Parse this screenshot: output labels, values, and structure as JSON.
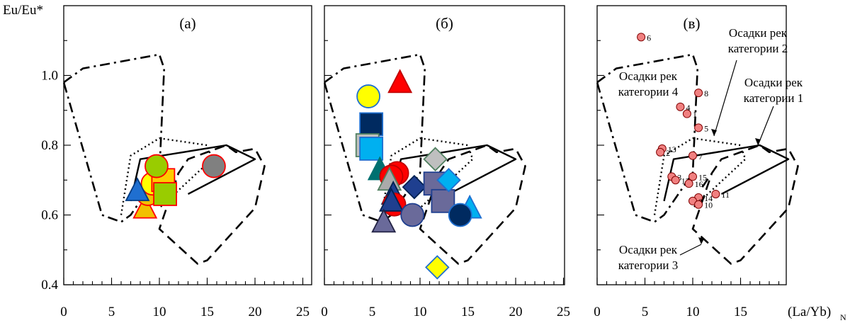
{
  "chart_data": [
    {
      "panel": "(а)",
      "type": "scatter",
      "ylabel": "Eu/Eu*",
      "xlim": [
        0,
        25
      ],
      "ylim": [
        0.4,
        1.2
      ],
      "xticks": [
        "0",
        "5",
        "10",
        "15",
        "20",
        "25"
      ],
      "yticks": [
        "0.4",
        "0.6",
        "0.8",
        "1.0"
      ],
      "fields": {
        "cat1": [
          [
            7,
            0.64
          ],
          [
            8,
            0.76
          ],
          [
            17,
            0.8
          ],
          [
            20,
            0.76
          ],
          [
            13,
            0.66
          ]
        ],
        "cat2": [
          [
            6,
            0.6
          ],
          [
            7,
            0.77
          ],
          [
            10,
            0.82
          ],
          [
            15,
            0.8
          ],
          [
            15.5,
            0.76
          ],
          [
            10,
            0.62
          ]
        ],
        "cat3": [
          [
            11,
            0.68
          ],
          [
            13,
            0.76
          ],
          [
            17,
            0.8
          ],
          [
            18,
            0.78
          ],
          [
            20,
            0.79
          ],
          [
            21,
            0.74
          ],
          [
            20,
            0.62
          ],
          [
            15,
            0.47
          ],
          [
            14,
            0.46
          ],
          [
            10,
            0.56
          ],
          [
            12,
            0.72
          ]
        ],
        "cat4": [
          [
            0,
            0.98
          ],
          [
            2,
            1.02
          ],
          [
            10,
            1.06
          ],
          [
            10.5,
            1.02
          ],
          [
            10,
            0.72
          ],
          [
            7,
            0.6
          ],
          [
            6,
            0.58
          ],
          [
            4,
            0.6
          ],
          [
            0,
            0.98
          ]
        ]
      },
      "points": [
        {
          "x": 8.5,
          "y": 0.62,
          "shape": "triangle",
          "fill": "#f2c000",
          "stroke": "#ff0000"
        },
        {
          "x": 8.8,
          "y": 0.66,
          "shape": "circle",
          "fill": "#f2c000",
          "stroke": "#ff0000"
        },
        {
          "x": 9.3,
          "y": 0.69,
          "shape": "circle",
          "fill": "#ffff00",
          "stroke": "#ff0000"
        },
        {
          "x": 10.4,
          "y": 0.7,
          "shape": "square",
          "fill": "#ffcc00",
          "stroke": "#ff0000"
        },
        {
          "x": 7.7,
          "y": 0.67,
          "shape": "triangle",
          "fill": "#1f6fd0",
          "stroke": "#003a80"
        },
        {
          "x": 9.7,
          "y": 0.74,
          "shape": "circle",
          "fill": "#99cc00",
          "stroke": "#ff0000"
        },
        {
          "x": 10.6,
          "y": 0.66,
          "shape": "square",
          "fill": "#99cc00",
          "stroke": "#ff0000"
        },
        {
          "x": 15.7,
          "y": 0.74,
          "shape": "circle",
          "fill": "#808080",
          "stroke": "#ff0000"
        }
      ]
    },
    {
      "panel": "(б)",
      "type": "scatter",
      "xlim": [
        0,
        25
      ],
      "ylim": [
        0.4,
        1.2
      ],
      "xticks": [
        "0",
        "5",
        "10",
        "15",
        "20",
        "25"
      ],
      "points": [
        {
          "x": 7.9,
          "y": 0.98,
          "shape": "triangle",
          "fill": "#ff0000",
          "stroke": "#c00000"
        },
        {
          "x": 4.6,
          "y": 0.94,
          "shape": "circle",
          "fill": "#ffff00",
          "stroke": "#1f6fd0"
        },
        {
          "x": 4.9,
          "y": 0.86,
          "shape": "square",
          "fill": "#002a60",
          "stroke": "#1f6fd0"
        },
        {
          "x": 4.5,
          "y": 0.8,
          "shape": "square",
          "fill": "#bfbfbf",
          "stroke": "#508060"
        },
        {
          "x": 4.9,
          "y": 0.79,
          "shape": "square",
          "fill": "#00b0f0",
          "stroke": "#1f6fd0"
        },
        {
          "x": 5.8,
          "y": 0.73,
          "shape": "triangle",
          "fill": "#007070",
          "stroke": "#007070"
        },
        {
          "x": 7.6,
          "y": 0.72,
          "shape": "circle",
          "fill": "#ff0000",
          "stroke": "#c00000"
        },
        {
          "x": 7.0,
          "y": 0.71,
          "shape": "circle",
          "fill": "#ff0000",
          "stroke": "#c00000"
        },
        {
          "x": 6.8,
          "y": 0.7,
          "shape": "triangle",
          "fill": "#aaaaaa",
          "stroke": "#508060"
        },
        {
          "x": 7.2,
          "y": 0.66,
          "shape": "triangle",
          "fill": "#1f3f8f",
          "stroke": "#002050"
        },
        {
          "x": 7.3,
          "y": 0.63,
          "shape": "circle",
          "fill": "#ff0000",
          "stroke": "#c00000"
        },
        {
          "x": 7.0,
          "y": 0.64,
          "shape": "triangle",
          "fill": "#1f3f8f",
          "stroke": "#002050"
        },
        {
          "x": 6.2,
          "y": 0.58,
          "shape": "triangle",
          "fill": "#6a6a9a",
          "stroke": "#222244"
        },
        {
          "x": 9.2,
          "y": 0.6,
          "shape": "circle",
          "fill": "#6a6a9a",
          "stroke": "#1f3f8f"
        },
        {
          "x": 9.4,
          "y": 0.68,
          "shape": "diamond",
          "fill": "#1f3f8f",
          "stroke": "#002050"
        },
        {
          "x": 11.6,
          "y": 0.76,
          "shape": "diamond",
          "fill": "#bfbfbf",
          "stroke": "#508060"
        },
        {
          "x": 11.6,
          "y": 0.69,
          "shape": "square",
          "fill": "#6a6a9a",
          "stroke": "#1f3f8f"
        },
        {
          "x": 12.4,
          "y": 0.64,
          "shape": "square",
          "fill": "#6a6a9a",
          "stroke": "#1f3f8f"
        },
        {
          "x": 13.0,
          "y": 0.7,
          "shape": "diamond",
          "fill": "#00b0f0",
          "stroke": "#1f6fd0"
        },
        {
          "x": 15.2,
          "y": 0.62,
          "shape": "triangle",
          "fill": "#00b0f0",
          "stroke": "#1f6fd0"
        },
        {
          "x": 14.2,
          "y": 0.6,
          "shape": "circle",
          "fill": "#002a60",
          "stroke": "#1f6fd0"
        },
        {
          "x": 11.8,
          "y": 0.45,
          "shape": "diamond",
          "fill": "#ffff00",
          "stroke": "#1f6fd0"
        }
      ]
    },
    {
      "panel": "(в)",
      "type": "scatter",
      "xlabel": "(La/Yb)",
      "xlabel_sub": "N",
      "xlim": [
        0,
        25
      ],
      "ylim": [
        0.4,
        1.2
      ],
      "xticks": [
        "0",
        "5",
        "10",
        "15"
      ],
      "annotations": [
        {
          "text": "Осадки рек",
          "line2": "категории 2"
        },
        {
          "text": "Осадки рек",
          "line2": "категории 4"
        },
        {
          "text": "Осадки рек",
          "line2": "категории 1"
        },
        {
          "text": "Осадки рек",
          "line2": "категории 3"
        }
      ],
      "points": [
        {
          "label": "6",
          "x": 4.6,
          "y": 1.11
        },
        {
          "label": "8",
          "x": 10.6,
          "y": 0.95
        },
        {
          "label": "1",
          "x": 9.4,
          "y": 0.89
        },
        {
          "label": "4",
          "x": 8.7,
          "y": 0.91
        },
        {
          "label": "5",
          "x": 10.6,
          "y": 0.85
        },
        {
          "label": "13",
          "x": 6.8,
          "y": 0.79
        },
        {
          "label": "2",
          "x": 6.6,
          "y": 0.78
        },
        {
          "label": "7",
          "x": 10.0,
          "y": 0.77
        },
        {
          "label": "15",
          "x": 10.0,
          "y": 0.71
        },
        {
          "label": "3",
          "x": 7.8,
          "y": 0.71
        },
        {
          "label": "12",
          "x": 8.2,
          "y": 0.7
        },
        {
          "label": "16",
          "x": 9.6,
          "y": 0.69
        },
        {
          "label": "14",
          "x": 10.6,
          "y": 0.65
        },
        {
          "label": "11",
          "x": 12.4,
          "y": 0.66
        },
        {
          "label": "9",
          "x": 10.0,
          "y": 0.64
        },
        {
          "label": "10",
          "x": 10.6,
          "y": 0.63
        }
      ]
    }
  ]
}
